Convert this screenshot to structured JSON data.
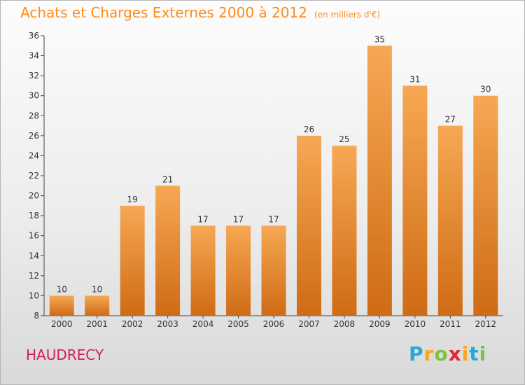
{
  "header": {
    "title": "Achats et Charges Externes 2000 à 2012",
    "unit": "(en milliers d'€)"
  },
  "place_name": "HAUDRECY",
  "logo": {
    "letters": [
      "P",
      "r",
      "o",
      "x",
      "i",
      "t",
      "i"
    ],
    "colors": [
      "#2aa7d9",
      "#f5a623",
      "#7dc242",
      "#e0262f",
      "#f5a623",
      "#2aa7d9",
      "#7dc242"
    ]
  },
  "colors": {
    "bar_top": "#f7a854",
    "bar_bottom": "#cf6b14",
    "title": "#ff8c1a",
    "place": "#d21f5a"
  },
  "chart_data": {
    "type": "bar",
    "title": "Achats et Charges Externes 2000 à 2012",
    "subtitle": "(en milliers d'€)",
    "categories": [
      "2000",
      "2001",
      "2002",
      "2003",
      "2004",
      "2005",
      "2006",
      "2007",
      "2008",
      "2009",
      "2010",
      "2011",
      "2012"
    ],
    "values": [
      10,
      10,
      19,
      21,
      17,
      17,
      17,
      26,
      25,
      35,
      31,
      27,
      30
    ],
    "ylim": [
      8,
      36
    ],
    "yticks": [
      8,
      10,
      12,
      14,
      16,
      18,
      20,
      22,
      24,
      26,
      28,
      30,
      32,
      34,
      36
    ],
    "grid": false,
    "legend": "none"
  }
}
